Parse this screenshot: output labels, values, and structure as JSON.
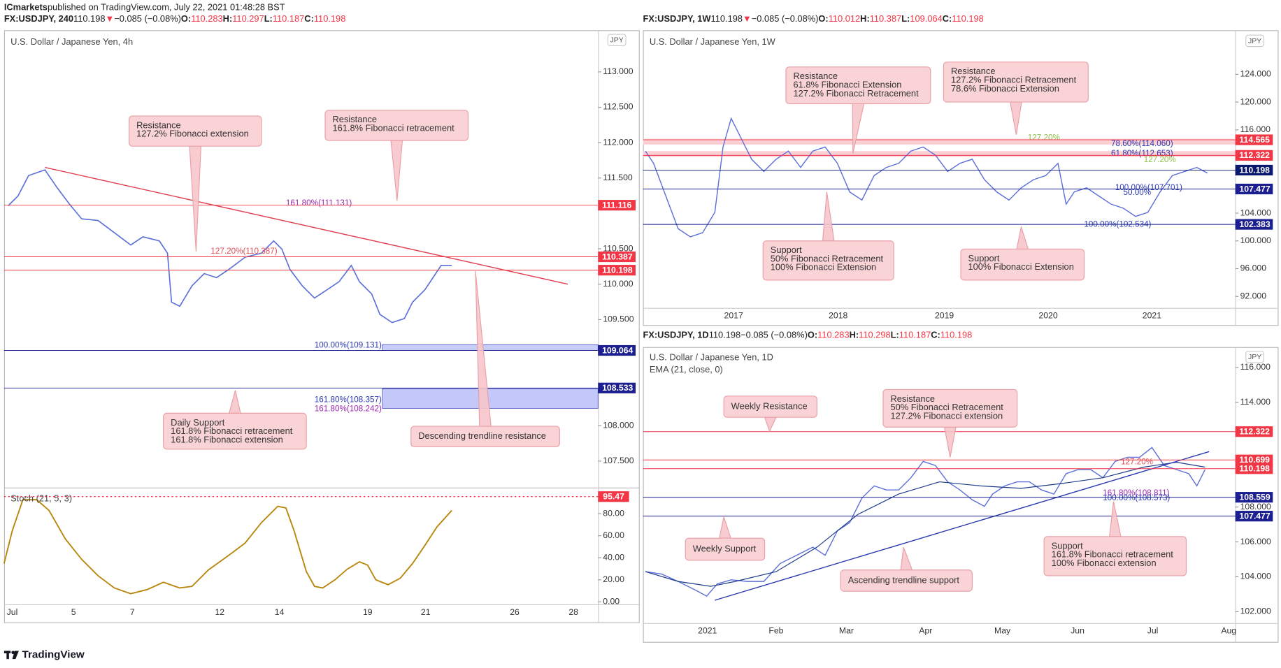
{
  "top_bar": {
    "publisher": "ICmarkets",
    "text": "published on TradingView.com, July 22, 2021 01:48:28 BST"
  },
  "panels": [
    {
      "header": {
        "symbol": "FX:USDJPY, 240",
        "last": "110.198",
        "arrow": "▼",
        "change": "−0.085 (−0.08%)",
        "ohlc": [
          [
            "O:",
            "110.283"
          ],
          [
            "H:",
            "110.297"
          ],
          [
            "L:",
            "110.187"
          ],
          [
            "C:",
            "110.198"
          ]
        ]
      },
      "title": "U.S. Dollar / Japanese Yen, 4h",
      "currency": "JPY",
      "price_ticks": [
        "113.000",
        "112.500",
        "112.000",
        "111.500",
        "110.500",
        "110.000",
        "109.500",
        "108.000",
        "107.500"
      ],
      "time_ticks": [
        "Jul",
        "5",
        "7",
        "12",
        "14",
        "19",
        "21",
        "26",
        "28"
      ],
      "price_badges": [
        {
          "label": "111.116",
          "color": "#f23645"
        },
        {
          "label": "110.387",
          "color": "#f23645"
        },
        {
          "label": "110.198",
          "color": "#f23645"
        },
        {
          "label": "109.064",
          "color": "#1b1f8f"
        },
        {
          "label": "108.533",
          "color": "#1b1f8f"
        }
      ],
      "fib_labels": [
        {
          "text": "161.80%(111.131)",
          "color": "#9c27b0"
        },
        {
          "text": "127.20%(110.387)",
          "color": "#e0505a"
        },
        {
          "text": "100.00%(109.131)",
          "color": "#2b3ab0"
        },
        {
          "text": "161.80%(108.357)",
          "color": "#2b3ab0"
        },
        {
          "text": "161.80%(108.242)",
          "color": "#9c27b0"
        }
      ],
      "annotations": [
        [
          "Resistance",
          "127.2% Fibonacci extension"
        ],
        [
          "Resistance",
          "161.8% Fibonacci retracement"
        ],
        [
          "Daily Support",
          "161.8% Fibonacci retracement",
          "161.8% Fibonacci extension"
        ],
        [
          "Descending trendline resistance"
        ]
      ]
    },
    {
      "header": {
        "symbol": "FX:USDJPY, 1W",
        "last": "110.198",
        "arrow": "▼",
        "change": "−0.085 (−0.08%)",
        "ohlc": [
          [
            "O:",
            "110.012"
          ],
          [
            "H:",
            "110.387"
          ],
          [
            "L:",
            "109.064"
          ],
          [
            "C:",
            "110.198"
          ]
        ]
      },
      "title": "U.S. Dollar / Japanese Yen, 1W",
      "currency": "JPY",
      "price_ticks": [
        "124.000",
        "120.000",
        "116.000",
        "104.000",
        "100.000",
        "96.000",
        "92.000"
      ],
      "time_ticks": [
        "2017",
        "2018",
        "2019",
        "2020",
        "2021"
      ],
      "price_badges": [
        {
          "label": "114.565",
          "color": "#f23645"
        },
        {
          "label": "112.322",
          "color": "#f23645"
        },
        {
          "label": "110.198",
          "color": "#0b1a6e"
        },
        {
          "label": "107.477",
          "color": "#1b1f8f"
        },
        {
          "label": "102.383",
          "color": "#1b1f8f"
        }
      ],
      "fib_labels": [
        {
          "text": "127.20%",
          "color": "#8bc34a"
        },
        {
          "text": "78.60%(114.060)",
          "color": "#2b3ab0"
        },
        {
          "text": "61.80%(112.653)",
          "color": "#2b3ab0"
        },
        {
          "text": "127.20%",
          "color": "#8bc34a"
        },
        {
          "text": "100.00%(107.701)",
          "color": "#2b3ab0"
        },
        {
          "text": "50.00%",
          "color": "#2b3ab0"
        },
        {
          "text": "100.00%(102.534)",
          "color": "#2b3ab0"
        }
      ],
      "annotations": [
        [
          "Resistance",
          "61.8% Fibonacci Extension",
          "127.2% Fibonacci Retracement"
        ],
        [
          "Resistance",
          "127.2% Fibonacci Retracement",
          "78.6% Fibonacci Extension"
        ],
        [
          "Support",
          "50% Fibonacci Retracement",
          "100% Fibonacci Extension"
        ],
        [
          "Support",
          "100% Fibonacci Extension"
        ]
      ]
    },
    {
      "header": {
        "symbol": "FX:USDJPY, 1D",
        "last": "110.198",
        "change": "−0.085 (−0.08%)",
        "ohlc": [
          [
            "O:",
            "110.283"
          ],
          [
            "H:",
            "110.298"
          ],
          [
            "L:",
            "110.187"
          ],
          [
            "C:",
            "110.198"
          ]
        ]
      },
      "title": "U.S. Dollar / Japanese Yen, 1D",
      "indicator": "EMA (21, close, 0)",
      "currency": "JPY",
      "price_ticks": [
        "116.000",
        "114.000",
        "108.000",
        "106.000",
        "104.000",
        "102.000"
      ],
      "time_ticks": [
        "2021",
        "Feb",
        "Mar",
        "Apr",
        "May",
        "Jun",
        "Jul",
        "Aug"
      ],
      "price_badges": [
        {
          "label": "112.322",
          "color": "#f23645"
        },
        {
          "label": "110.699",
          "color": "#f23645"
        },
        {
          "label": "110.198",
          "color": "#f23645"
        },
        {
          "label": "108.559",
          "color": "#1b1f8f"
        },
        {
          "label": "107.477",
          "color": "#1b1f8f"
        }
      ],
      "fib_labels": [
        {
          "text": "127.20%",
          "color": "#e0505a"
        },
        {
          "text": "161.80%(108.811)",
          "color": "#9c27b0"
        },
        {
          "text": "100.00%(108.573)",
          "color": "#2b3ab0"
        }
      ],
      "annotations": [
        [
          "Weekly Resistance"
        ],
        [
          "Resistance",
          "50% Fibonacci Retracement",
          "127.2% Fibonacci extension"
        ],
        [
          "Weekly Support"
        ],
        [
          "Ascending trendline support"
        ],
        [
          "Support",
          "161.8% Fibonacci retracement",
          "100% Fibonacci extension"
        ]
      ]
    }
  ],
  "stoch": {
    "title": "Stoch (21, 5, 3)",
    "ticks": [
      "80.00",
      "60.00",
      "40.00",
      "20.00",
      "0.00"
    ],
    "badge": {
      "label": "95.47",
      "color": "#f23645"
    }
  },
  "footer": {
    "logo": "TradingView"
  }
}
